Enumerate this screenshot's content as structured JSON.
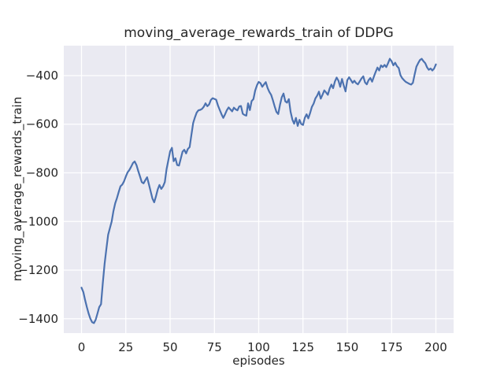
{
  "figure": {
    "title": "moving_average_rewards_train of DDPG",
    "xlabel": "episodes",
    "ylabel": "moving_average_rewards_train"
  },
  "chart_data": {
    "type": "line",
    "title": "moving_average_rewards_train of DDPG",
    "xlabel": "episodes",
    "ylabel": "moving_average_rewards_train",
    "grid": true,
    "legend": "none",
    "xlim": [
      -10,
      210
    ],
    "ylim": [
      -1459,
      -277
    ],
    "xticks": [
      0,
      25,
      50,
      75,
      100,
      125,
      150,
      175,
      200
    ],
    "yticks": [
      -400,
      -600,
      -800,
      -1000,
      -1200,
      -1400
    ],
    "style": {
      "axes_bg": "#EAEAF2",
      "grid_color": "#FFFFFF",
      "line_color": "#4C72B0",
      "text_color": "#262626",
      "line_width": 2.2
    },
    "series": [
      {
        "name": "moving_average_rewards_train",
        "x_start": 0,
        "x_step": 1,
        "y": [
          -1272,
          -1290,
          -1322,
          -1352,
          -1378,
          -1400,
          -1414,
          -1418,
          -1404,
          -1378,
          -1352,
          -1340,
          -1255,
          -1175,
          -1115,
          -1055,
          -1028,
          -1000,
          -958,
          -925,
          -904,
          -878,
          -855,
          -848,
          -835,
          -815,
          -798,
          -788,
          -775,
          -760,
          -753,
          -768,
          -792,
          -815,
          -838,
          -843,
          -830,
          -818,
          -846,
          -876,
          -905,
          -921,
          -897,
          -868,
          -850,
          -866,
          -856,
          -838,
          -785,
          -748,
          -712,
          -697,
          -752,
          -740,
          -768,
          -770,
          -742,
          -713,
          -705,
          -720,
          -702,
          -694,
          -645,
          -595,
          -572,
          -552,
          -543,
          -541,
          -537,
          -528,
          -514,
          -526,
          -519,
          -500,
          -493,
          -496,
          -499,
          -523,
          -541,
          -559,
          -574,
          -559,
          -543,
          -531,
          -539,
          -547,
          -532,
          -539,
          -543,
          -527,
          -525,
          -557,
          -562,
          -565,
          -514,
          -542,
          -505,
          -497,
          -462,
          -440,
          -426,
          -431,
          -446,
          -436,
          -427,
          -451,
          -467,
          -479,
          -501,
          -527,
          -549,
          -558,
          -521,
          -489,
          -474,
          -506,
          -511,
          -497,
          -549,
          -581,
          -598,
          -574,
          -607,
          -582,
          -599,
          -603,
          -574,
          -559,
          -576,
          -554,
          -529,
          -515,
          -494,
          -482,
          -466,
          -495,
          -479,
          -461,
          -469,
          -479,
          -454,
          -437,
          -452,
          -424,
          -408,
          -421,
          -446,
          -414,
          -441,
          -465,
          -419,
          -407,
          -418,
          -430,
          -421,
          -431,
          -436,
          -424,
          -412,
          -403,
          -428,
          -436,
          -419,
          -410,
          -425,
          -404,
          -385,
          -367,
          -379,
          -358,
          -365,
          -356,
          -365,
          -349,
          -331,
          -341,
          -358,
          -347,
          -361,
          -369,
          -398,
          -411,
          -419,
          -426,
          -430,
          -434,
          -437,
          -430,
          -396,
          -363,
          -349,
          -336,
          -331,
          -341,
          -349,
          -366,
          -376,
          -371,
          -379,
          -371,
          -354
        ]
      }
    ]
  }
}
